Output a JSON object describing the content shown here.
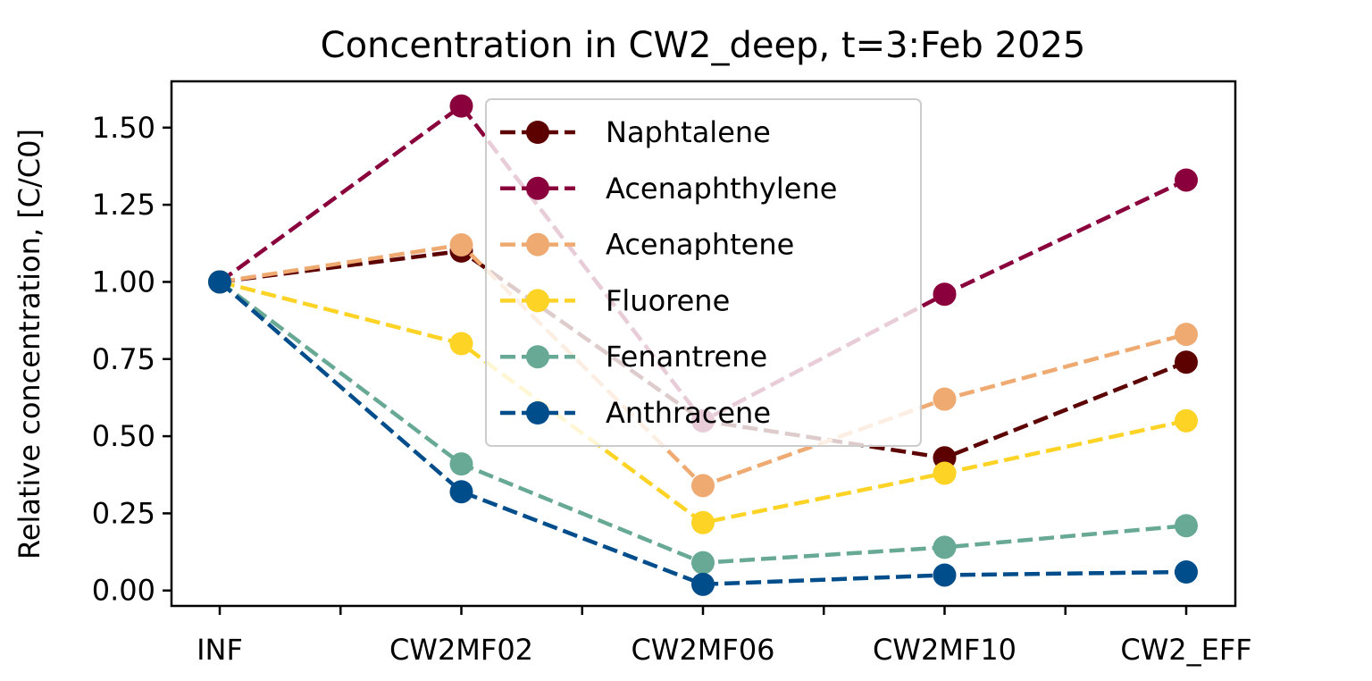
{
  "chart_data": {
    "type": "line",
    "title": "Concentration in CW2_deep, t=3:Feb 2025",
    "xlabel": "",
    "ylabel": "Relative concentration, [C/C0]",
    "categories": [
      "INF",
      "CW2MF02",
      "CW2MF06",
      "CW2MF10",
      "CW2_EFF"
    ],
    "ylim": [
      -0.05,
      1.65
    ],
    "yticks": [
      0.0,
      0.25,
      0.5,
      0.75,
      1.0,
      1.25,
      1.5
    ],
    "ytick_labels": [
      "0.00",
      "0.25",
      "0.50",
      "0.75",
      "1.00",
      "1.25",
      "1.50"
    ],
    "grid": false,
    "legend_position": "top-center",
    "line_style": "dashed",
    "marker": "circle",
    "series": [
      {
        "name": "Naphtalene",
        "color": "#5c0000",
        "values": [
          1.0,
          1.1,
          0.55,
          0.43,
          0.74
        ]
      },
      {
        "name": "Acenaphthylene",
        "color": "#8a003c",
        "values": [
          1.0,
          1.57,
          0.55,
          0.96,
          1.33
        ]
      },
      {
        "name": "Acenaphtene",
        "color": "#efaa72",
        "values": [
          1.0,
          1.12,
          0.34,
          0.62,
          0.83
        ]
      },
      {
        "name": "Fluorene",
        "color": "#fdd325",
        "values": [
          1.0,
          0.8,
          0.22,
          0.38,
          0.55
        ]
      },
      {
        "name": "Fenantrene",
        "color": "#67a994",
        "values": [
          1.0,
          0.41,
          0.09,
          0.14,
          0.21
        ]
      },
      {
        "name": "Anthracene",
        "color": "#004d8b",
        "values": [
          1.0,
          0.32,
          0.02,
          0.05,
          0.06
        ]
      }
    ]
  }
}
